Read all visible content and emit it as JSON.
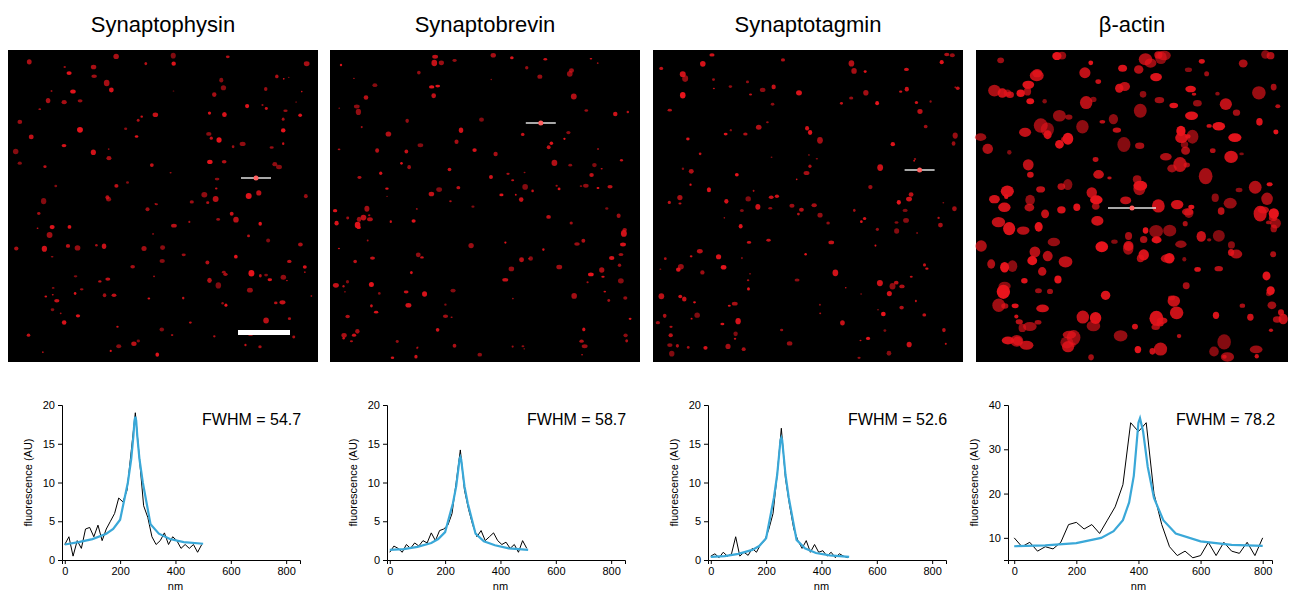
{
  "chart_data": [
    {
      "type": "line",
      "title": "Synaptophysin",
      "annotation": "FWHM = 54.7",
      "xlabel": "nm",
      "ylabel": "fluorescence (AU)",
      "xlim": [
        -10,
        850
      ],
      "xticks": [
        0,
        200,
        400,
        600,
        800
      ],
      "ylim": [
        0,
        20
      ],
      "yticks": [
        0,
        5,
        10,
        15,
        20
      ],
      "series": [
        {
          "color": "#000000",
          "line_style": "solid",
          "x": [
            0,
            15,
            30,
            45,
            60,
            75,
            90,
            105,
            120,
            135,
            150,
            165,
            180,
            195,
            210,
            225,
            240,
            255,
            270,
            285,
            300,
            315,
            330,
            345,
            360,
            375,
            390,
            405,
            420,
            435,
            450,
            465,
            480,
            495
          ],
          "values": [
            2,
            3,
            0.5,
            2.5,
            1.5,
            4,
            4.2,
            3,
            4.5,
            2.5,
            4,
            5,
            6,
            8,
            7.5,
            9,
            14,
            19,
            13,
            7,
            5.5,
            3,
            2,
            2.5,
            3.5,
            2,
            3,
            2.5,
            1.5,
            2,
            1.5,
            2,
            1,
            2
          ]
        },
        {
          "color": "#3aa8d8",
          "line_style": "solid",
          "x": [
            0,
            50,
            100,
            150,
            175,
            200,
            228,
            240,
            248,
            252,
            255,
            258,
            262,
            270,
            282,
            310,
            340,
            380,
            430,
            500
          ],
          "values": [
            2.0,
            2.3,
            2.7,
            3.4,
            4.0,
            5.2,
            10,
            13,
            16,
            18,
            18.5,
            18,
            16,
            13,
            10,
            4.6,
            3.4,
            2.7,
            2.3,
            2.1
          ]
        }
      ]
    },
    {
      "type": "line",
      "title": "Synaptobrevin",
      "annotation": "FWHM = 58.7",
      "xlabel": "nm",
      "ylabel": "fluorescence (AU)",
      "xlim": [
        -10,
        850
      ],
      "xticks": [
        0,
        200,
        400,
        600,
        800
      ],
      "ylim": [
        0,
        20
      ],
      "yticks": [
        0,
        5,
        10,
        15,
        20
      ],
      "series": [
        {
          "color": "#000000",
          "line_style": "solid",
          "x": [
            0,
            15,
            30,
            45,
            60,
            75,
            90,
            105,
            120,
            135,
            150,
            165,
            180,
            195,
            210,
            225,
            240,
            255,
            270,
            285,
            300,
            315,
            330,
            345,
            360,
            375,
            390,
            405,
            420,
            435,
            450,
            465,
            480,
            495
          ],
          "values": [
            1,
            1.8,
            1.5,
            1,
            2,
            1.5,
            2.2,
            1.8,
            2.5,
            2.2,
            3.5,
            2.5,
            3.8,
            4,
            4.5,
            6,
            10,
            14.2,
            9,
            6.5,
            4.5,
            3,
            3.8,
            2.5,
            3,
            3.5,
            2.5,
            2,
            2.3,
            1.5,
            2,
            1,
            2.5,
            1.5
          ]
        },
        {
          "color": "#3aa8d8",
          "line_style": "solid",
          "x": [
            0,
            50,
            100,
            150,
            175,
            200,
            228,
            240,
            248,
            252,
            255,
            258,
            262,
            270,
            282,
            310,
            340,
            380,
            430,
            500
          ],
          "values": [
            1.3,
            1.4,
            1.7,
            2.2,
            2.7,
            3.6,
            7.3,
            9.5,
            11.8,
            13,
            13.3,
            13,
            11.8,
            9.5,
            7.3,
            3.4,
            2.4,
            1.9,
            1.5,
            1.3
          ]
        }
      ]
    },
    {
      "type": "line",
      "title": "Synaptotagmin",
      "annotation": "FWHM = 52.6",
      "xlabel": "nm",
      "ylabel": "fluorescence (AU)",
      "xlim": [
        -10,
        850
      ],
      "xticks": [
        0,
        200,
        400,
        600,
        800
      ],
      "ylim": [
        0,
        20
      ],
      "yticks": [
        0,
        5,
        10,
        15,
        20
      ],
      "series": [
        {
          "color": "#000000",
          "line_style": "solid",
          "x": [
            0,
            15,
            30,
            45,
            60,
            75,
            90,
            105,
            120,
            135,
            150,
            165,
            180,
            195,
            210,
            225,
            240,
            255,
            270,
            285,
            300,
            315,
            330,
            345,
            360,
            375,
            390,
            405,
            420,
            435,
            450,
            465,
            480,
            495
          ],
          "values": [
            0.5,
            0.8,
            0.3,
            1,
            0.5,
            0.8,
            3,
            0.5,
            1,
            0.6,
            1.5,
            1,
            2,
            2.5,
            4,
            6,
            11,
            17,
            10.5,
            7,
            4,
            2.5,
            1.5,
            2.5,
            1,
            2,
            1,
            1.2,
            0.5,
            1,
            0.3,
            0.8,
            0.5,
            0.3
          ]
        },
        {
          "color": "#3aa8d8",
          "line_style": "solid",
          "x": [
            0,
            50,
            100,
            150,
            175,
            200,
            228,
            240,
            248,
            252,
            255,
            258,
            262,
            270,
            282,
            310,
            340,
            380,
            430,
            500
          ],
          "values": [
            0.4,
            0.5,
            0.8,
            1.3,
            1.8,
            2.8,
            8,
            11,
            14,
            15.5,
            15.8,
            15.5,
            14,
            11,
            8,
            2.6,
            1.5,
            0.9,
            0.6,
            0.4
          ]
        }
      ]
    },
    {
      "type": "line",
      "title": "β-actin",
      "annotation": "FWHM = 78.2",
      "xlabel": "nm",
      "ylabel": "fluorescence (AU)",
      "xlim": [
        -20,
        830
      ],
      "xticks": [
        0,
        200,
        400,
        600,
        800
      ],
      "ylim": [
        5,
        40
      ],
      "yticks": [
        10,
        20,
        30,
        40
      ],
      "series": [
        {
          "color": "#000000",
          "line_style": "solid",
          "x": [
            0,
            25,
            50,
            75,
            100,
            125,
            150,
            175,
            200,
            225,
            250,
            275,
            300,
            325,
            350,
            375,
            400,
            425,
            450,
            475,
            500,
            525,
            550,
            575,
            600,
            625,
            650,
            675,
            700,
            725,
            750,
            775,
            800
          ],
          "values": [
            10,
            8,
            9,
            7,
            8,
            7.5,
            9,
            13,
            13.5,
            12,
            13,
            11,
            14,
            17,
            22,
            36,
            34,
            36,
            20,
            13,
            8,
            6,
            7,
            5.5,
            6,
            9,
            6,
            9,
            7,
            6.5,
            9,
            6,
            10
          ]
        },
        {
          "color": "#3aa8d8",
          "line_style": "solid",
          "x": [
            0,
            100,
            200,
            280,
            320,
            350,
            370,
            385,
            395,
            400,
            405,
            415,
            430,
            450,
            480,
            520,
            600,
            700,
            800
          ],
          "values": [
            8.1,
            8.3,
            8.8,
            10,
            11.5,
            14,
            18,
            24,
            32,
            36,
            37,
            34,
            26,
            19,
            14,
            11,
            9.2,
            8.4,
            8.2
          ]
        }
      ]
    }
  ]
}
